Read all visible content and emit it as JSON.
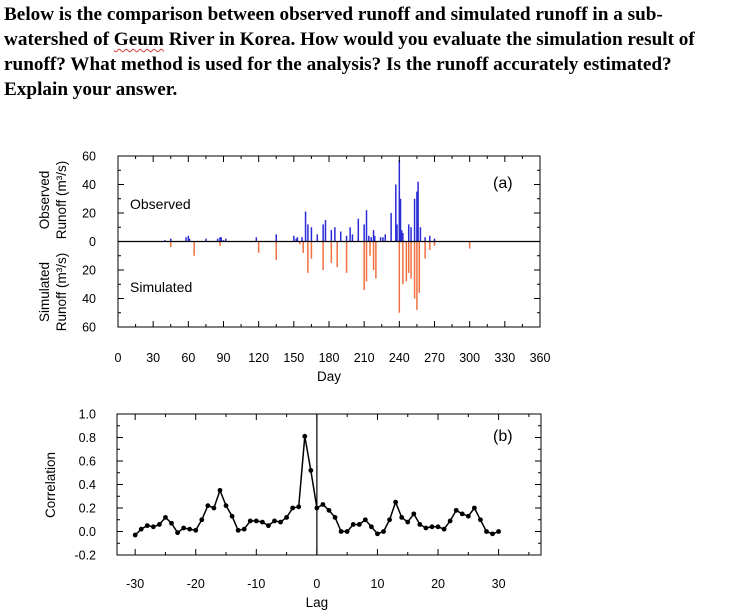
{
  "question": {
    "line1_a": "Below is the comparison between observed runoff and simulated runoff in a sub-watershed of ",
    "river_word": "Geum",
    "line1_b": " River in Korea. How would you evaluate the simulation result of runoff? What method is used for the analysis? Is the runoff accurately estimated? Explain your answer."
  },
  "chart_data": [
    {
      "type": "bar",
      "panel_label": "(a)",
      "xlabel": "Day",
      "ylabel_top": "Observed Runoff (m³/s)",
      "ylabel_bottom": "Simulated Runoff (m³/s)",
      "xlim": [
        0,
        360
      ],
      "ylim": [
        -60,
        60
      ],
      "x_ticks": [
        "0",
        "30",
        "60",
        "90",
        "120",
        "150",
        "180",
        "210",
        "240",
        "270",
        "300",
        "330",
        "360"
      ],
      "y_ticks": [
        "60",
        "40",
        "20",
        "0",
        "20",
        "40",
        "60"
      ],
      "observed_color": "#2b2bd6",
      "simulated_color": "#f07040",
      "series": [
        {
          "name": "Observed",
          "days": [
            40,
            45,
            58,
            60,
            61,
            75,
            85,
            87,
            88,
            90,
            92,
            118,
            135,
            150,
            152,
            153,
            157,
            160,
            162,
            165,
            170,
            175,
            177,
            182,
            185,
            190,
            195,
            198,
            200,
            205,
            210,
            212,
            214,
            216,
            218,
            219,
            224,
            226,
            228,
            233,
            237,
            238,
            240,
            241,
            242,
            243,
            248,
            250,
            253,
            255,
            256,
            258,
            262,
            266,
            270
          ],
          "values": [
            1,
            2,
            3,
            4,
            2,
            2,
            2,
            3,
            3,
            1,
            2,
            3,
            5,
            4,
            2,
            3,
            3,
            21,
            12,
            10,
            5,
            12,
            15,
            8,
            10,
            7,
            4,
            10,
            5,
            16,
            12,
            22,
            4,
            3,
            8,
            4,
            3,
            3,
            5,
            20,
            40,
            12,
            57,
            30,
            8,
            6,
            12,
            10,
            30,
            35,
            42,
            10,
            3,
            4,
            2
          ]
        },
        {
          "name": "Simulated",
          "days": [
            45,
            65,
            87,
            120,
            135,
            155,
            158,
            162,
            165,
            175,
            182,
            187,
            195,
            210,
            212,
            215,
            218,
            220,
            240,
            243,
            246,
            248,
            250,
            253,
            255,
            257,
            262,
            266,
            270,
            300
          ],
          "values": [
            4,
            10,
            3,
            8,
            13,
            2,
            8,
            22,
            12,
            20,
            15,
            18,
            22,
            34,
            28,
            10,
            20,
            26,
            50,
            30,
            28,
            22,
            26,
            40,
            48,
            36,
            12,
            6,
            3,
            5
          ]
        }
      ]
    },
    {
      "type": "line",
      "panel_label": "(b)",
      "xlabel": "Lag",
      "ylabel": "Correlation",
      "xlim": [
        -33,
        37
      ],
      "ylim": [
        -0.2,
        1.0
      ],
      "x_ticks": [
        "-30",
        "-20",
        "-10",
        "0",
        "10",
        "20",
        "30"
      ],
      "y_ticks": [
        "1.0",
        "0.8",
        "0.6",
        "0.4",
        "0.2",
        "0.0",
        "-0.2"
      ],
      "x": [
        -30,
        -29,
        -28,
        -27,
        -26,
        -25,
        -24,
        -23,
        -22,
        -21,
        -20,
        -19,
        -18,
        -17,
        -16,
        -15,
        -14,
        -13,
        -12,
        -11,
        -10,
        -9,
        -8,
        -7,
        -6,
        -5,
        -4,
        -3,
        -2,
        -1,
        0,
        1,
        2,
        3,
        4,
        5,
        6,
        7,
        8,
        9,
        10,
        11,
        12,
        13,
        14,
        15,
        16,
        17,
        18,
        19,
        20,
        21,
        22,
        23,
        24,
        25,
        26,
        27,
        28,
        29,
        30
      ],
      "values": [
        -0.03,
        0.02,
        0.05,
        0.04,
        0.06,
        0.12,
        0.07,
        -0.01,
        0.03,
        0.02,
        0.01,
        0.1,
        0.22,
        0.2,
        0.35,
        0.22,
        0.13,
        0.01,
        0.02,
        0.09,
        0.09,
        0.08,
        0.05,
        0.09,
        0.08,
        0.12,
        0.2,
        0.21,
        0.81,
        0.52,
        0.2,
        0.23,
        0.18,
        0.12,
        0.0,
        0.0,
        0.06,
        0.06,
        0.1,
        0.04,
        -0.02,
        0.0,
        0.1,
        0.25,
        0.12,
        0.08,
        0.15,
        0.06,
        0.03,
        0.04,
        0.04,
        0.02,
        0.09,
        0.18,
        0.15,
        0.13,
        0.2,
        0.1,
        0.0,
        -0.02,
        0.0
      ]
    }
  ]
}
